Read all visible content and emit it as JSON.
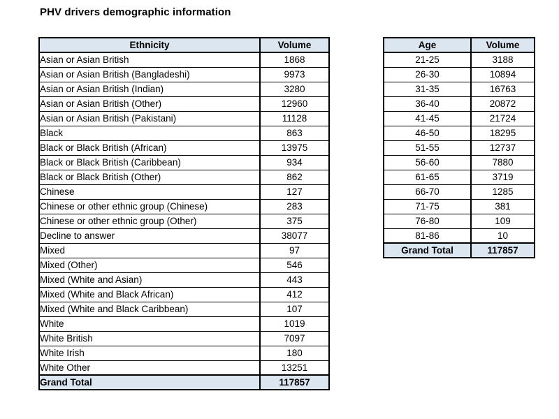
{
  "page": {
    "title": "PHV drivers demographic information"
  },
  "colors": {
    "header_bg": "#dce6f1",
    "border": "#000000",
    "text": "#000000",
    "page_bg": "#ffffff"
  },
  "ethnicity_table": {
    "headers": [
      "Ethnicity",
      "Volume"
    ],
    "rows": [
      [
        "Asian or Asian British",
        "1868"
      ],
      [
        "Asian or Asian British (Bangladeshi)",
        "9973"
      ],
      [
        "Asian or Asian British (Indian)",
        "3280"
      ],
      [
        "Asian or Asian British (Other)",
        "12960"
      ],
      [
        "Asian or Asian British (Pakistani)",
        "11128"
      ],
      [
        "Black",
        "863"
      ],
      [
        "Black or Black British (African)",
        "13975"
      ],
      [
        "Black or Black British (Caribbean)",
        "934"
      ],
      [
        "Black or Black British (Other)",
        "862"
      ],
      [
        "Chinese",
        "127"
      ],
      [
        "Chinese or other ethnic group (Chinese)",
        "283"
      ],
      [
        "Chinese or other ethnic group (Other)",
        "375"
      ],
      [
        "Decline to answer",
        "38077"
      ],
      [
        "Mixed",
        "97"
      ],
      [
        "Mixed (Other)",
        "546"
      ],
      [
        "Mixed (White and Asian)",
        "443"
      ],
      [
        "Mixed (White and Black African)",
        "412"
      ],
      [
        "Mixed (White and Black Caribbean)",
        "107"
      ],
      [
        "White",
        "1019"
      ],
      [
        "White British",
        "7097"
      ],
      [
        "White Irish",
        "180"
      ],
      [
        "White Other",
        "13251"
      ]
    ],
    "grand_total": {
      "label": "Grand Total",
      "value": "117857"
    }
  },
  "age_table": {
    "headers": [
      "Age",
      "Volume"
    ],
    "rows": [
      [
        "21-25",
        "3188"
      ],
      [
        "26-30",
        "10894"
      ],
      [
        "31-35",
        "16763"
      ],
      [
        "36-40",
        "20872"
      ],
      [
        "41-45",
        "21724"
      ],
      [
        "46-50",
        "18295"
      ],
      [
        "51-55",
        "12737"
      ],
      [
        "56-60",
        "7880"
      ],
      [
        "61-65",
        "3719"
      ],
      [
        "66-70",
        "1285"
      ],
      [
        "71-75",
        "381"
      ],
      [
        "76-80",
        "109"
      ],
      [
        "81-86",
        "10"
      ]
    ],
    "grand_total": {
      "label": "Grand Total",
      "value": "117857"
    }
  }
}
